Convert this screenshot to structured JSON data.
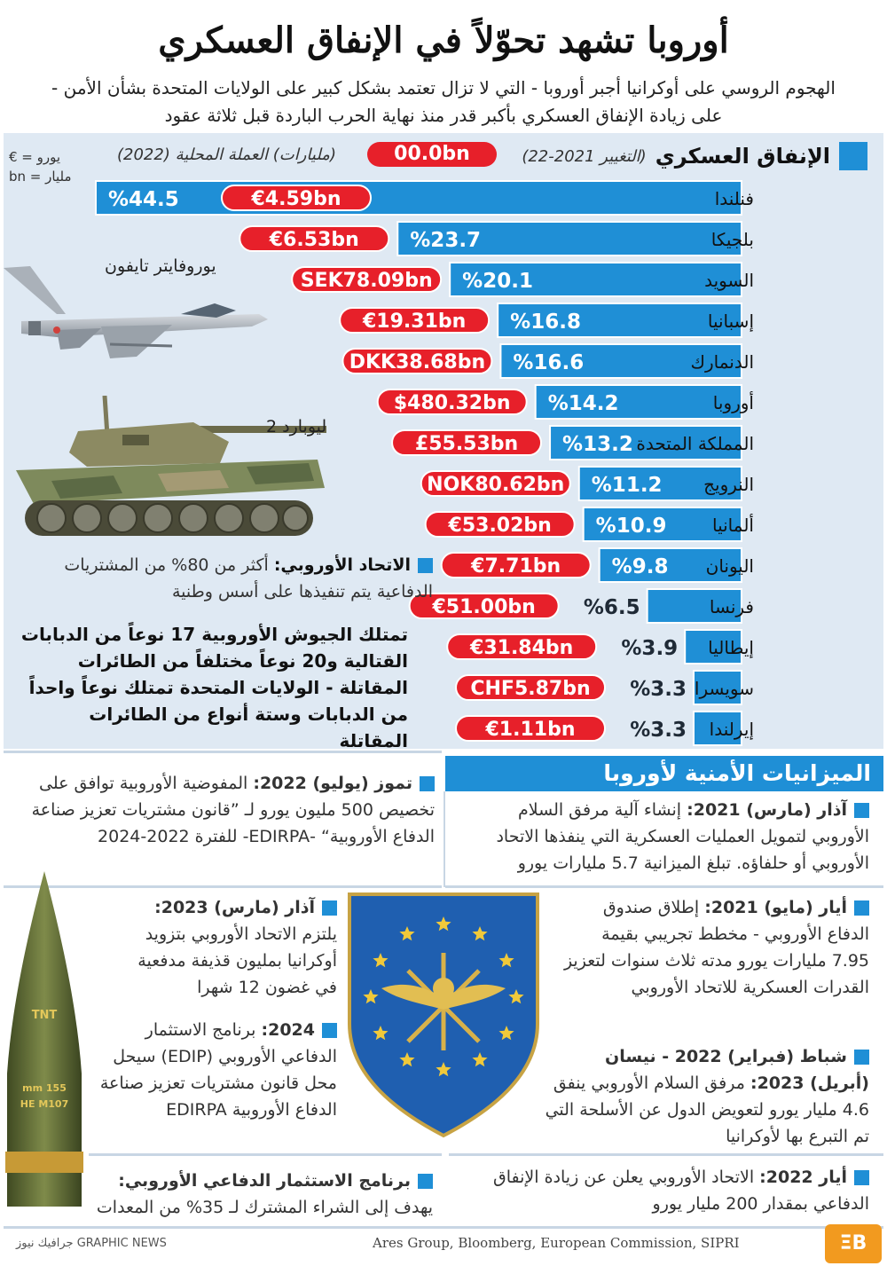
{
  "header": {
    "title": "أوروبا تشهد تحوّلاً في الإنفاق العسكري",
    "subtitle": "الهجوم الروسي على أوكرانيا أجبر أوروبا - التي لا تزال تعتمد بشكل كبير على الولايات المتحدة بشأن الأمن - على زيادة الإنفاق العسكري بأكبر قدر منذ نهاية الحرب الباردة قبل ثلاثة عقود"
  },
  "chart_data": {
    "type": "bar",
    "orientation": "horizontal",
    "title": "الإنفاق العسكري",
    "change_label": "(التغيير 2021-22)",
    "local_label": "(مليارات) العملة المحلية (2022)",
    "legend_badge": "00.0bn",
    "legend_euro": "€ = يورو",
    "legend_bn": "bn = مليار",
    "categories": [
      "فنلندا",
      "بلجيكا",
      "السويد",
      "إسبانيا",
      "الدنمارك",
      "أوروبا",
      "المملكة المتحدة",
      "النرويج",
      "ألمانيا",
      "اليونان",
      "فرنسا",
      "إيطاليا",
      "سويسرا",
      "إيرلندا"
    ],
    "values": [
      44.5,
      23.7,
      20.1,
      16.8,
      16.6,
      14.2,
      13.2,
      11.2,
      10.9,
      9.8,
      6.5,
      3.9,
      3.3,
      3.3
    ],
    "value_labels": [
      "%44.5",
      "%23.7",
      "%20.1",
      "%16.8",
      "%16.6",
      "%14.2",
      "%13.2",
      "%11.2",
      "%10.9",
      "%9.8",
      "%6.5",
      "%3.9",
      "%3.3",
      "%3.3"
    ],
    "spending_local": [
      "€4.59bn",
      "€6.53bn",
      "SEK78.09bn",
      "€19.31bn",
      "DKK38.68bn",
      "$480.32bn",
      "£55.53bn",
      "NOK80.62bn",
      "€53.02bn",
      "€7.71bn",
      "€51.00bn",
      "€31.84bn",
      "CHF5.87bn",
      "€1.11bn"
    ],
    "xlim": [
      0,
      44.5
    ],
    "colors": {
      "bar": "#1f8fd6",
      "badge": "#e7202a",
      "panel": "#dfe9f3"
    }
  },
  "illustrations": {
    "jet_label": "يوروفايتر تايفون",
    "tank_label": "ليوبارد 2",
    "shell_labels": [
      "TNT",
      "155 mm",
      "HE M107"
    ]
  },
  "notes": {
    "eu_lead": "الاتحاد الأوروبي:",
    "eu_text": "أكثر من 80% من المشتريات الدفاعية يتم تنفيذها على أسس وطنية",
    "armies": "تمتلك الجيوش الأوروبية 17 نوعاً من الدبابات القتالية و20 نوعاً مختلفاً من الطائرات المقاتلة - الولايات المتحدة تمتلك نوعاً واحداً من الدبابات وستة أنواع من الطائرات المقاتلة"
  },
  "timeline": {
    "banner": "الميزانيات الأمنية لأوروبا",
    "right": [
      {
        "date": "آذار (مارس) 2021:",
        "text": "إنشاء آلية مرفق السلام الأوروبي لتمويل العمليات العسكرية التي ينفذها الاتحاد الأوروبي أو حلفاؤه. تبلغ الميزانية 5.7 مليارات يورو"
      },
      {
        "date": "أيار (مايو) 2021:",
        "text": "إطلاق صندوق الدفاع الأوروبي - مخطط تجريبي بقيمة 7.95 مليارات يورو مدته ثلاث سنوات لتعزيز القدرات العسكرية للاتحاد الأوروبي"
      },
      {
        "date": "شباط (فبراير) 2022 - نيسان (أبريل) 2023:",
        "text": "مرفق السلام الأوروبي ينفق 4.6 مليار يورو لتعويض الدول عن الأسلحة التي تم التبرع بها لأوكرانيا"
      },
      {
        "date": "أيار 2022:",
        "text": "الاتحاد الأوروبي يعلن عن زيادة الإنفاق الدفاعي بمقدار 200 مليار يورو"
      }
    ],
    "left": [
      {
        "date": "تموز (يوليو) 2022:",
        "text": "المفوضية الأوروبية توافق على تخصيص 500 مليون يورو لـ ”قانون مشتريات تعزيز صناعة الدفاع الأوروبية“ -EDIRPA- للفترة 2022-2024"
      },
      {
        "date": "آذار (مارس) 2023:",
        "text": "يلتزم الاتحاد الأوروبي بتزويد أوكرانيا بمليون قذيفة مدفعية في غضون 12 شهرا"
      },
      {
        "date": "2024:",
        "text": "برنامج الاستثمار الدفاعي الأوروبي (EDIP) سيحل محل قانون مشتريات تعزيز صناعة الدفاع الأوروبية EDIRPA"
      },
      {
        "date": "برنامج الاستثمار الدفاعي الأوروبي:",
        "text": "يهدف إلى الشراء المشترك لـ 35% من المعدات"
      }
    ]
  },
  "footer": {
    "source": "Ares Group, Bloomberg, European Commission, SIPRI",
    "credit": "GRAPHIC NEWS جرافيك نيوز",
    "logo": "ΞB"
  }
}
